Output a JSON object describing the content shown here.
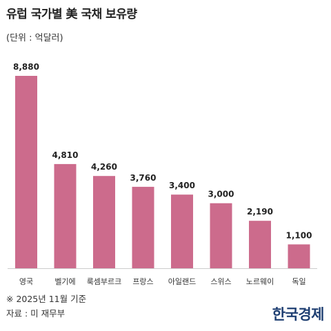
{
  "chart_data": {
    "type": "bar",
    "title": "유럽 국가별 美 국채 보유량",
    "subtitle": "(단위 : 억달러)",
    "categories": [
      "영국",
      "벨기에",
      "룩셈부르크",
      "프랑스",
      "아일랜드",
      "스위스",
      "노르웨이",
      "독일"
    ],
    "values": [
      8880,
      4810,
      4260,
      3760,
      3400,
      3000,
      2190,
      1100
    ],
    "value_labels": [
      "8,880",
      "4,810",
      "4,260",
      "3,760",
      "3,400",
      "3,000",
      "2,190",
      "1,100"
    ],
    "xlabel": "",
    "ylabel": "",
    "ylim": [
      0,
      8880
    ],
    "grid": false,
    "legend": "none",
    "bar_color": "#cc6b8c",
    "axis_color": "#cccccc"
  },
  "footer": {
    "note": "※ 2025년 11월 기준",
    "source": "자료 : 미 재무부",
    "logo": "한국경제"
  }
}
